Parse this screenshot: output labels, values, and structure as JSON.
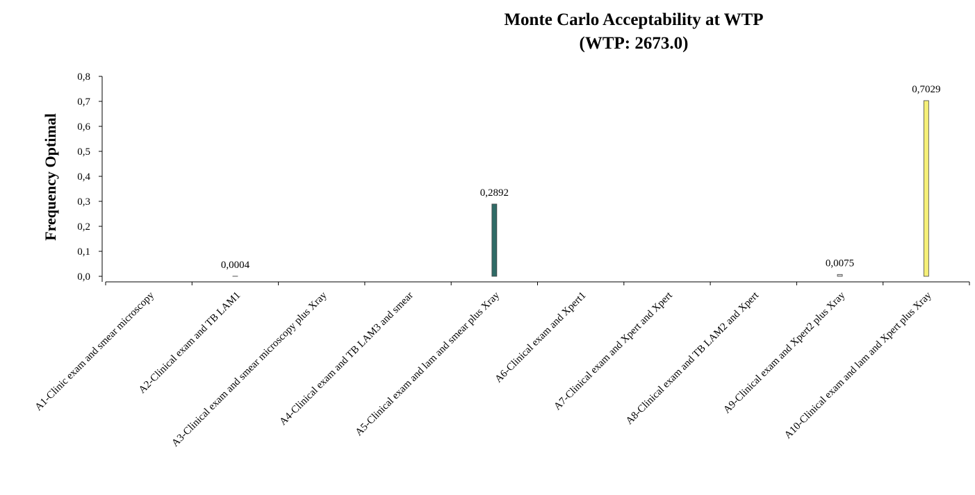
{
  "chart_data": {
    "type": "bar",
    "title": "Monte Carlo Acceptability at WTP",
    "subtitle": "(WTP: 2673.0)",
    "y_label": "Frequency Optimal",
    "categories": [
      "A1-Clinic exam and smear microscopy",
      "A2-Clinical exam and TB LAM1",
      "A3-Clinical exam and smear microscopy plus Xray",
      "A4-Clinical exam and TB LAM3 and smear",
      "A5-Clinical exam and lam and smear plus Xray",
      "A6-Clinical exam and Xpert1",
      "A7-Clinical exam and Xpert and Xpert",
      "A8-Clinical exam and TB LAM2 and Xpert",
      "A9-Clinical exam and Xpert2 plus Xray",
      "A10-Clinical exam and lam and Xpert plus Xray"
    ],
    "values": [
      0,
      0.0004,
      0,
      0,
      0.2892,
      0,
      0,
      0,
      0.0075,
      0.7029
    ],
    "value_labels": [
      null,
      "0,0004",
      null,
      null,
      "0,2892",
      null,
      null,
      null,
      "0,0075",
      "0,7029"
    ],
    "colors": [
      "#3b5ba5",
      "#d62828",
      "#2e8b57",
      "#7a4fa0",
      "#2f6b66",
      "#1f3f6b",
      "#b08d57",
      "#6a8caf",
      "#d9d9d9",
      "#f5ef78"
    ],
    "ylim": [
      0,
      0.8
    ],
    "yticks": [
      {
        "value": 0,
        "label": "0,0"
      },
      {
        "value": 0.1,
        "label": "0,1"
      },
      {
        "value": 0.2,
        "label": "0,2"
      },
      {
        "value": 0.3,
        "label": "0,3"
      },
      {
        "value": 0.4,
        "label": "0,4"
      },
      {
        "value": 0.5,
        "label": "0,5"
      },
      {
        "value": 0.6,
        "label": "0,6"
      },
      {
        "value": 0.7,
        "label": "0,7"
      },
      {
        "value": 0.8,
        "label": "0,8"
      }
    ]
  }
}
